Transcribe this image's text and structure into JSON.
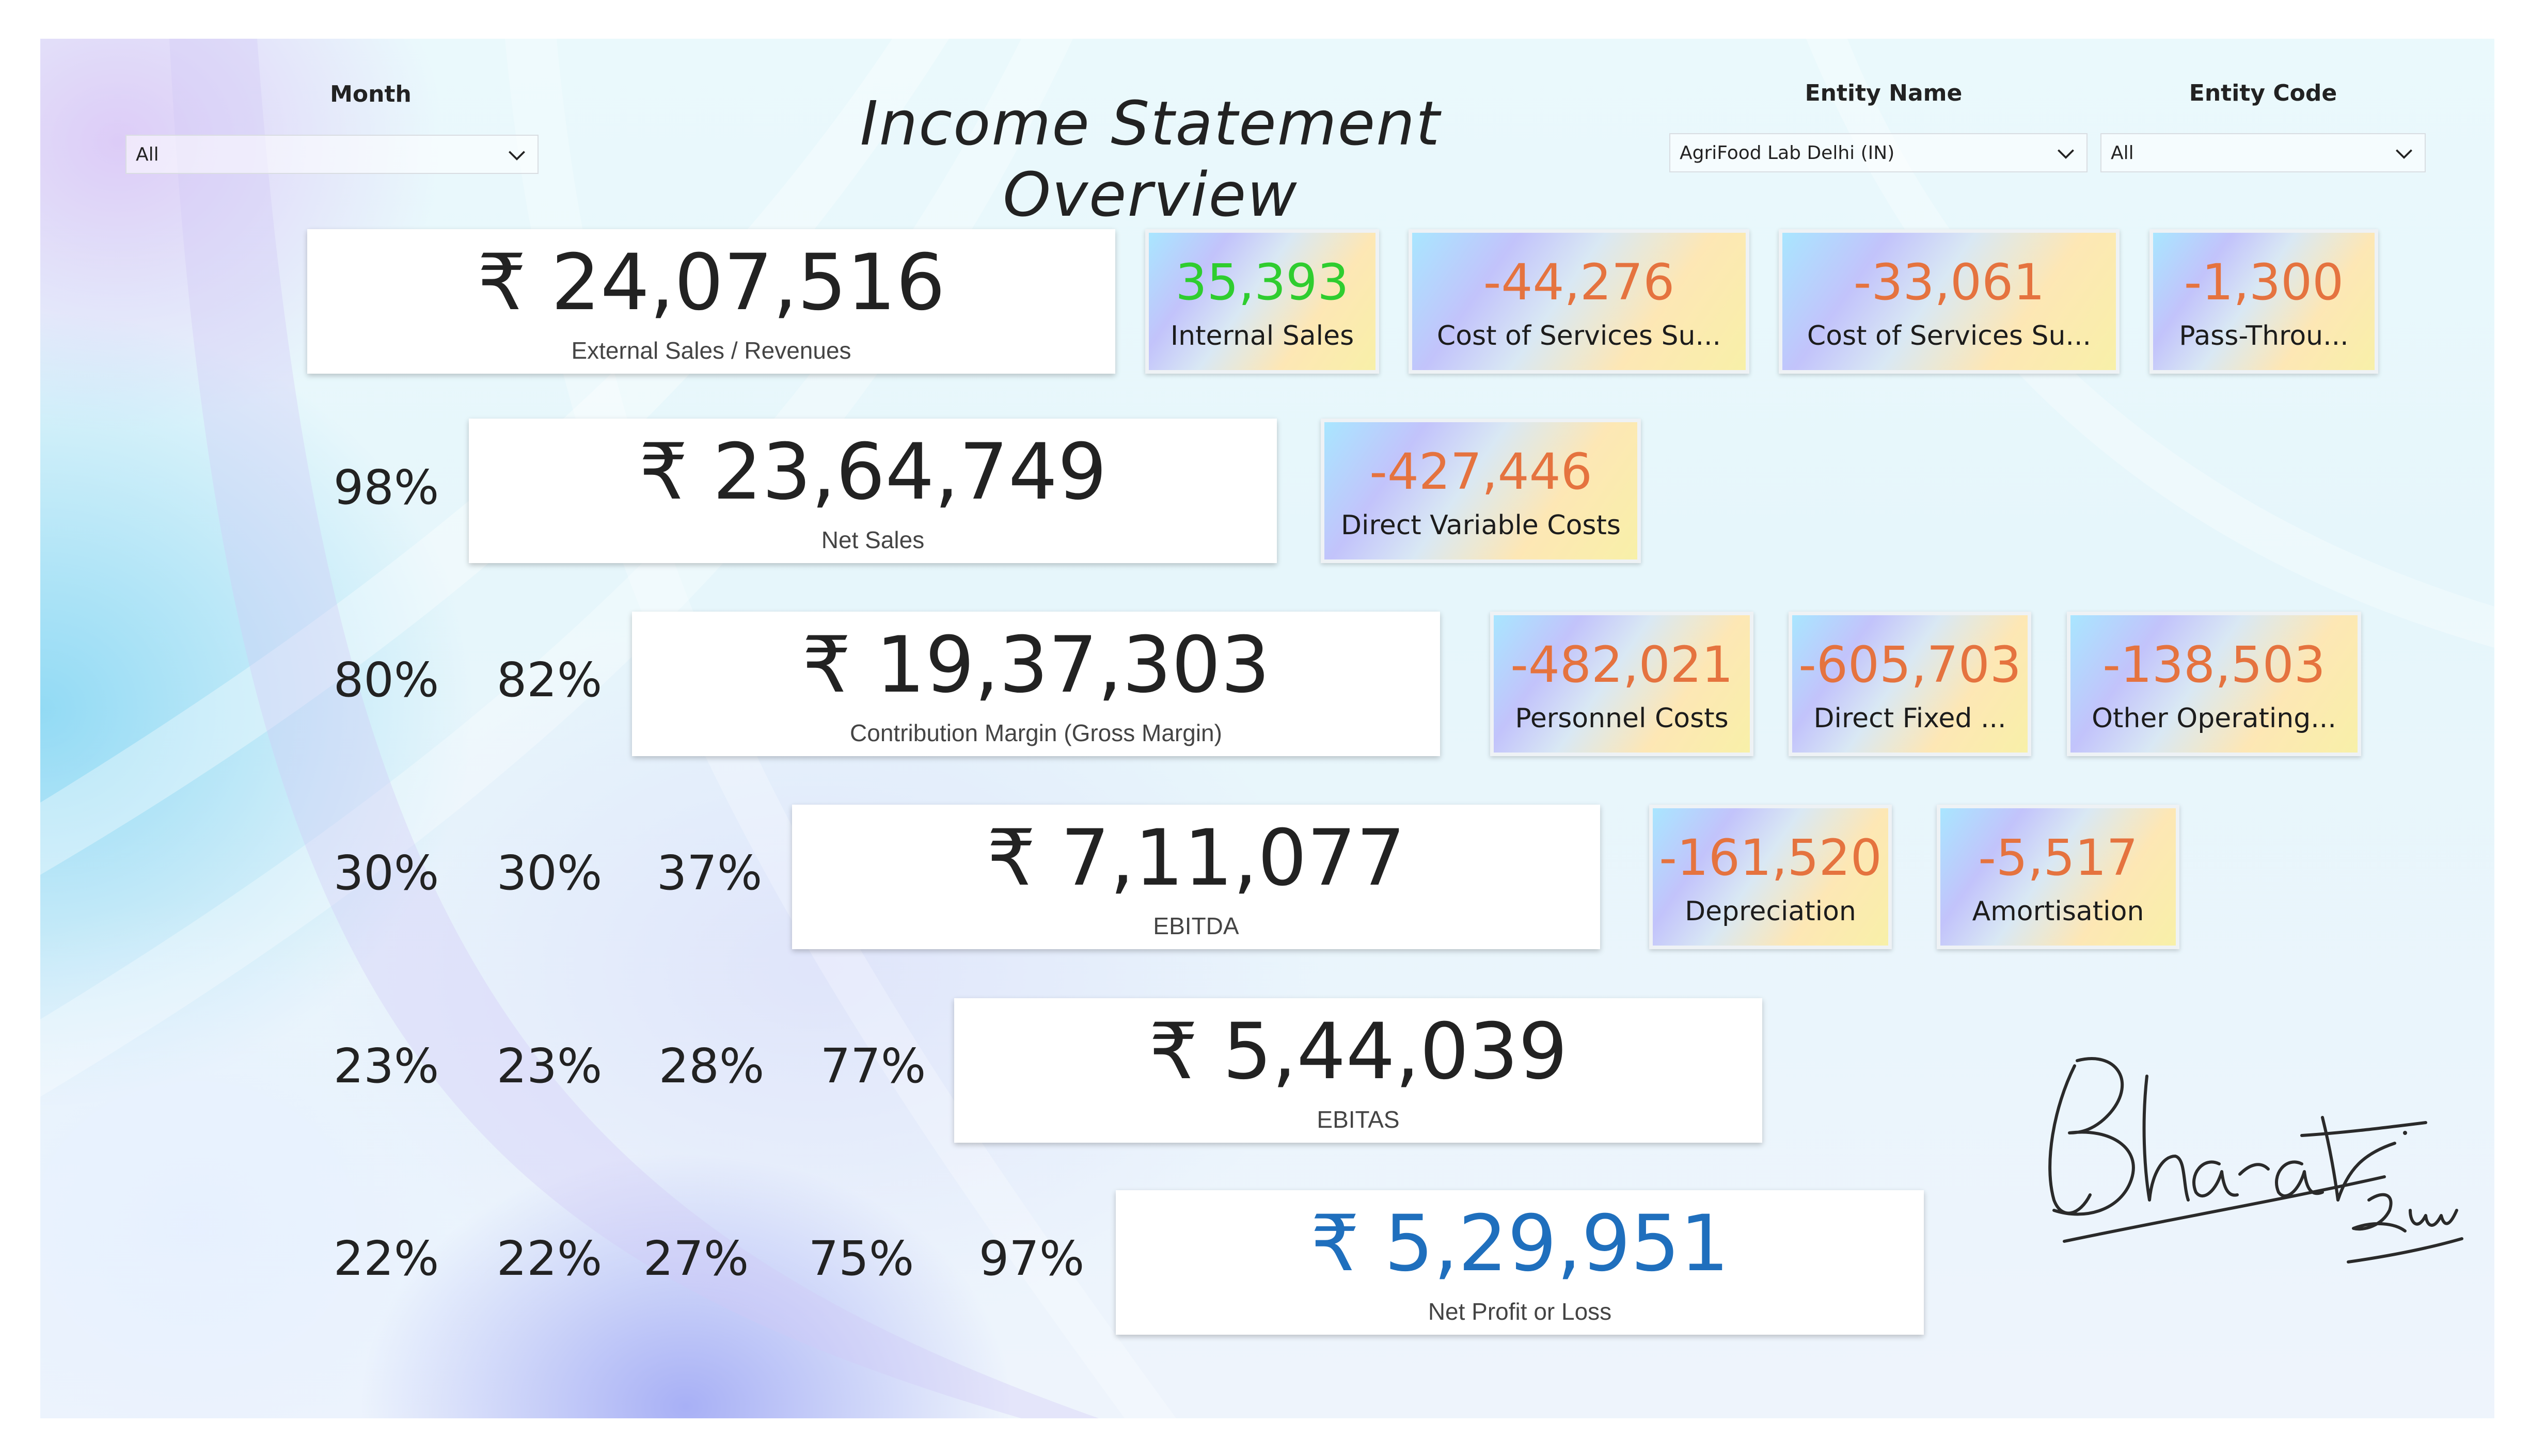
{
  "title": "Income Statement Overview",
  "filters": {
    "month": {
      "label": "Month",
      "value": "All"
    },
    "entity_name": {
      "label": "Entity Name",
      "value": "AgriFood Lab Delhi (IN)"
    },
    "entity_code": {
      "label": "Entity Code",
      "value": "All"
    }
  },
  "main_cards": [
    {
      "value": "₹ 24,07,516",
      "label": "External Sales / Revenues"
    },
    {
      "value": "₹ 23,64,749",
      "label": "Net Sales"
    },
    {
      "value": "₹ 19,37,303",
      "label": "Contribution Margin (Gross Margin)"
    },
    {
      "value": "₹ 7,11,077",
      "label": "EBITDA"
    },
    {
      "value": "₹ 5,44,039",
      "label": "EBITAS"
    },
    {
      "value": "₹ 5,29,951",
      "label": "Net Profit or Loss"
    }
  ],
  "kpis": [
    {
      "value": "35,393",
      "label": "Internal Sales"
    },
    {
      "value": "-44,276",
      "label": "Cost of Services Su..."
    },
    {
      "value": "-33,061",
      "label": "Cost of Services Su..."
    },
    {
      "value": "-1,300",
      "label": "Pass-Throu..."
    },
    {
      "value": "-427,446",
      "label": "Direct Variable Costs"
    },
    {
      "value": "-482,021",
      "label": "Personnel Costs"
    },
    {
      "value": "-605,703",
      "label": "Direct Fixed ..."
    },
    {
      "value": "-138,503",
      "label": "Other Operating..."
    },
    {
      "value": "-161,520",
      "label": "Depreciation"
    },
    {
      "value": "-5,517",
      "label": "Amortisation"
    }
  ],
  "percentages": {
    "row1": [
      "98%"
    ],
    "row2": [
      "80%",
      "82%"
    ],
    "row3": [
      "30%",
      "30%",
      "37%"
    ],
    "row4": [
      "23%",
      "23%",
      "28%",
      "77%"
    ],
    "row5": [
      "22%",
      "22%",
      "27%",
      "75%",
      "97%"
    ]
  },
  "colors": {
    "negative_value": "#e5733f",
    "positive_value": "#2fcd2f",
    "net_profit_value": "#1f6fbd"
  },
  "icons": {
    "dropdown": "chevron-down-icon",
    "signature": "signature"
  }
}
